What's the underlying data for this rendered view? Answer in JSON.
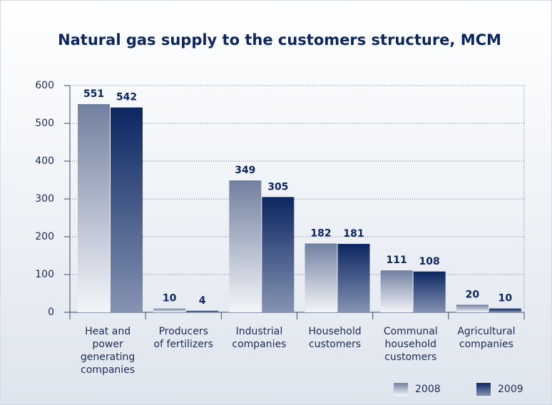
{
  "chart_data": {
    "type": "bar",
    "title": "Natural gas supply to the customers structure, MCM",
    "categories": [
      "Heat and\npower\ngenerating\ncompanies",
      "Producers\nof fertilizers",
      "Industrial\ncompanies",
      "Household\ncustomers",
      "Communal\nhousehold\ncustomers",
      "Agricultural\ncompanies"
    ],
    "series": [
      {
        "name": "2008",
        "color": "#71809f",
        "values": [
          551,
          10,
          349,
          182,
          111,
          20
        ]
      },
      {
        "name": "2009",
        "color": "#0c2661",
        "values": [
          542,
          4,
          305,
          181,
          108,
          10
        ]
      }
    ],
    "ylim": [
      0,
      600
    ],
    "yticks": [
      0,
      100,
      200,
      300,
      400,
      500,
      600
    ],
    "grid": true,
    "legend": "bottom-right"
  }
}
